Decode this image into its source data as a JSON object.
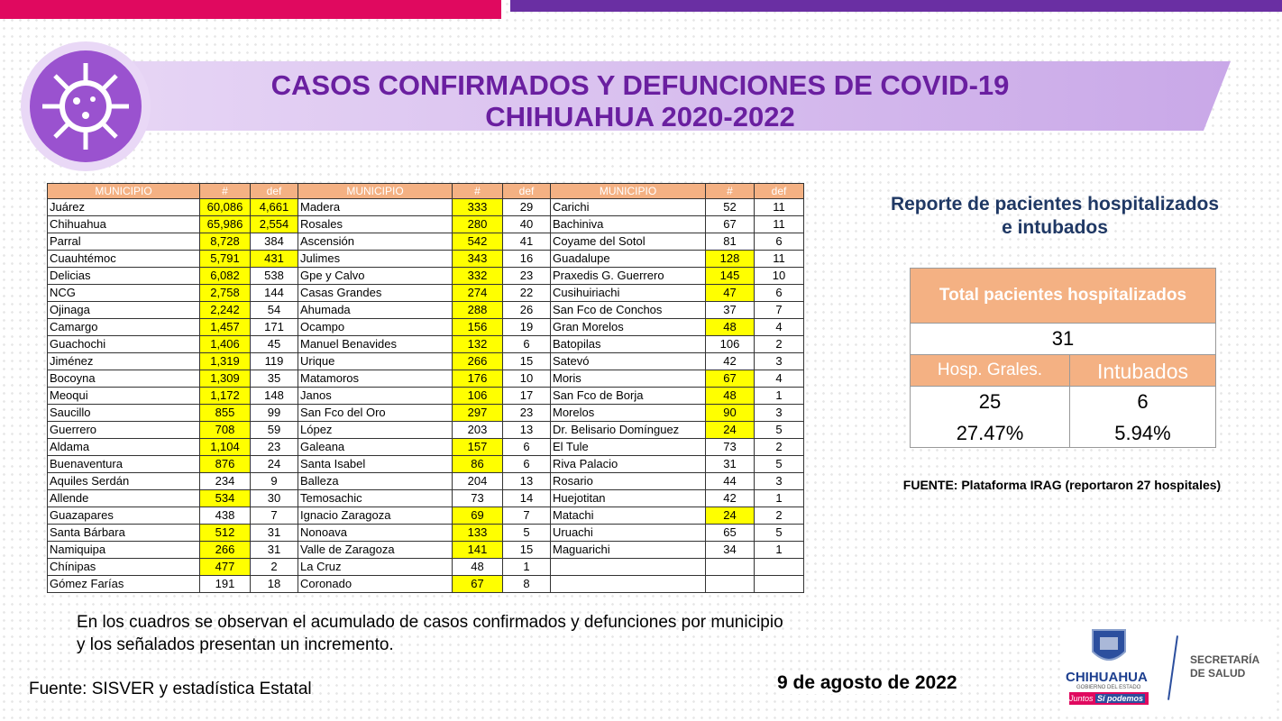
{
  "header": {
    "title_line1": "CASOS CONFIRMADOS Y DEFUNCIONES DE COVID-19",
    "title_line2": "CHIHUAHUA 2020-2022"
  },
  "table": {
    "headers": [
      "MUNICIPIO",
      "#",
      "def"
    ],
    "highlight_color": "#ffff00",
    "groups": [
      [
        [
          "Juárez",
          "60,086",
          "4,661",
          true,
          true
        ],
        [
          "Chihuahua",
          "65,986",
          "2,554",
          true,
          true
        ],
        [
          "Parral",
          "8,728",
          "384",
          true,
          false
        ],
        [
          "Cuauhtémoc",
          "5,791",
          "431",
          true,
          true
        ],
        [
          "Delicias",
          "6,082",
          "538",
          true,
          false
        ],
        [
          "NCG",
          "2,758",
          "144",
          true,
          false
        ],
        [
          "Ojinaga",
          "2,242",
          "54",
          true,
          false
        ],
        [
          "Camargo",
          "1,457",
          "171",
          true,
          false
        ],
        [
          "Guachochi",
          "1,406",
          "45",
          true,
          false
        ],
        [
          "Jiménez",
          "1,319",
          "119",
          true,
          false
        ],
        [
          "Bocoyna",
          "1,309",
          "35",
          true,
          false
        ],
        [
          "Meoqui",
          "1,172",
          "148",
          true,
          false
        ],
        [
          "Saucillo",
          "855",
          "99",
          true,
          false
        ],
        [
          "Guerrero",
          "708",
          "59",
          true,
          false
        ],
        [
          "Aldama",
          "1,104",
          "23",
          true,
          false
        ],
        [
          "Buenaventura",
          "876",
          "24",
          true,
          false
        ],
        [
          "Aquiles Serdán",
          "234",
          "9",
          false,
          false
        ],
        [
          "Allende",
          "534",
          "30",
          true,
          false
        ],
        [
          "Guazapares",
          "438",
          "7",
          false,
          false
        ],
        [
          "Santa Bárbara",
          "512",
          "31",
          true,
          false
        ],
        [
          "Namiquipa",
          "266",
          "31",
          true,
          false
        ],
        [
          "Chínipas",
          "477",
          "2",
          true,
          false
        ],
        [
          "Gómez Farías",
          "191",
          "18",
          false,
          false
        ]
      ],
      [
        [
          "Madera",
          "333",
          "29",
          true,
          false
        ],
        [
          "Rosales",
          "280",
          "40",
          true,
          false
        ],
        [
          "Ascensión",
          "542",
          "41",
          true,
          false
        ],
        [
          "Julimes",
          "343",
          "16",
          true,
          false
        ],
        [
          "Gpe y Calvo",
          "332",
          "23",
          true,
          false
        ],
        [
          "Casas Grandes",
          "274",
          "22",
          true,
          false
        ],
        [
          "Ahumada",
          "288",
          "26",
          true,
          false
        ],
        [
          "Ocampo",
          "156",
          "19",
          true,
          false
        ],
        [
          "Manuel Benavides",
          "132",
          "6",
          true,
          false
        ],
        [
          "Urique",
          "266",
          "15",
          true,
          false
        ],
        [
          "Matamoros",
          "176",
          "10",
          true,
          false
        ],
        [
          "Janos",
          "106",
          "17",
          true,
          false
        ],
        [
          "San Fco del Oro",
          "297",
          "23",
          true,
          false
        ],
        [
          "López",
          "203",
          "13",
          false,
          false
        ],
        [
          "Galeana",
          "157",
          "6",
          true,
          false
        ],
        [
          "Santa Isabel",
          "86",
          "6",
          true,
          false
        ],
        [
          "Balleza",
          "204",
          "13",
          false,
          false
        ],
        [
          "Temosachic",
          "73",
          "14",
          false,
          false
        ],
        [
          "Ignacio Zaragoza",
          "69",
          "7",
          true,
          false
        ],
        [
          "Nonoava",
          "133",
          "5",
          true,
          false
        ],
        [
          "Valle de Zaragoza",
          "141",
          "15",
          true,
          false
        ],
        [
          "La Cruz",
          "48",
          "1",
          false,
          false
        ],
        [
          "Coronado",
          "67",
          "8",
          true,
          false
        ]
      ],
      [
        [
          "Carichi",
          "52",
          "11",
          false,
          false
        ],
        [
          "Bachiniva",
          "67",
          "11",
          false,
          false
        ],
        [
          "Coyame del Sotol",
          "81",
          "6",
          false,
          false
        ],
        [
          "Guadalupe",
          "128",
          "11",
          true,
          false
        ],
        [
          "Praxedis G. Guerrero",
          "145",
          "10",
          true,
          false
        ],
        [
          "Cusihuiriachi",
          "47",
          "6",
          true,
          false
        ],
        [
          "San Fco de Conchos",
          "37",
          "7",
          false,
          false
        ],
        [
          "Gran Morelos",
          "48",
          "4",
          true,
          false
        ],
        [
          "Batopilas",
          "106",
          "2",
          false,
          false
        ],
        [
          "Satevó",
          "42",
          "3",
          false,
          false
        ],
        [
          "Moris",
          "67",
          "4",
          true,
          false
        ],
        [
          "San Fco de Borja",
          "48",
          "1",
          true,
          false
        ],
        [
          "Morelos",
          "90",
          "3",
          true,
          false
        ],
        [
          "Dr. Belisario Domínguez",
          "24",
          "5",
          true,
          false
        ],
        [
          "El Tule",
          "73",
          "2",
          false,
          false
        ],
        [
          "Riva Palacio",
          "31",
          "5",
          false,
          false
        ],
        [
          "Rosario",
          "44",
          "3",
          false,
          false
        ],
        [
          "Huejotitan",
          "42",
          "1",
          false,
          false
        ],
        [
          "Matachi",
          "24",
          "2",
          true,
          false
        ],
        [
          "Uruachi",
          "65",
          "5",
          false,
          false
        ],
        [
          "Maguarichi",
          "34",
          "1",
          false,
          false
        ]
      ]
    ]
  },
  "report": {
    "title_line1": "Reporte de pacientes hospitalizados",
    "title_line2": "e intubados",
    "total_label": "Total pacientes hospitalizados",
    "total": "31",
    "col1_label": "Hosp. Grales.",
    "col2_label": "Intubados",
    "col1_value": "25",
    "col2_value": "6",
    "col1_pct": "27.47%",
    "col2_pct": "5.94%",
    "source": "FUENTE: Plataforma IRAG (reportaron 27 hospitales)"
  },
  "notes": {
    "line1": "En los cuadros se observan el acumulado de casos confirmados y defunciones por municipio",
    "line2": "y los señalados presentan un incremento.",
    "source": "Fuente: SISVER y estadística Estatal",
    "date": "9 de agosto de 2022"
  },
  "logo": {
    "state": "CHIHUAHUA",
    "gov": "GOBIERNO DEL ESTADO",
    "slogan1": "Juntos",
    "slogan2": "Sí podemos",
    "dept1": "SECRETARÍA",
    "dept2": "DE SALUD"
  }
}
